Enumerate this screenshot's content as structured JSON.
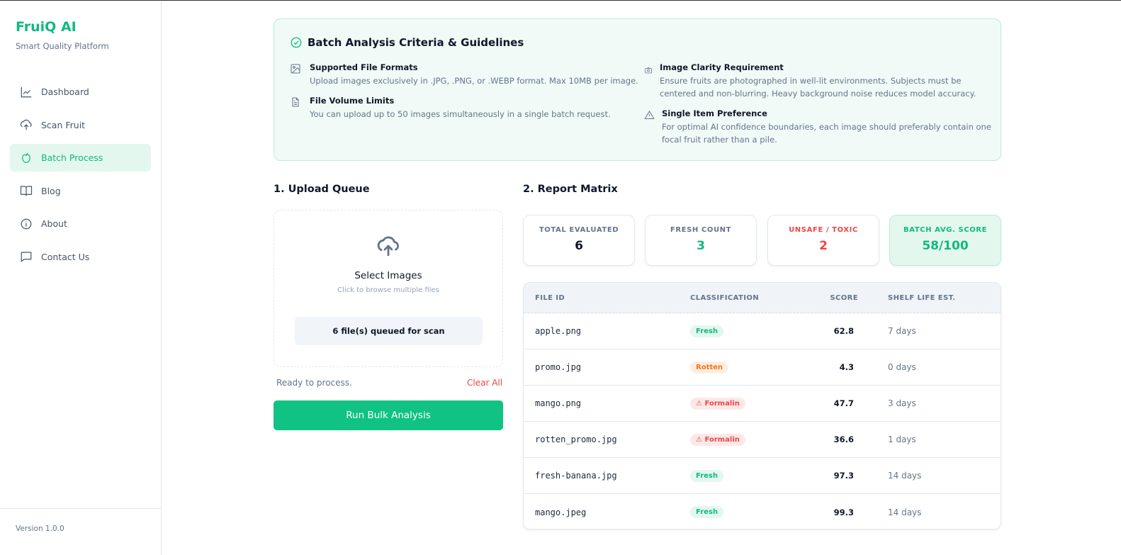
{
  "sidebar": {
    "brand": "FruiQ AI",
    "tagline": "Smart Quality Platform",
    "items": [
      {
        "label": "Dashboard",
        "icon": "chart-line-icon"
      },
      {
        "label": "Scan Fruit",
        "icon": "cloud-upload-icon"
      },
      {
        "label": "Batch Process",
        "icon": "apple-icon",
        "active": true
      },
      {
        "label": "Blog",
        "icon": "book-icon"
      },
      {
        "label": "About",
        "icon": "info-icon"
      },
      {
        "label": "Contact Us",
        "icon": "message-icon"
      }
    ],
    "version": "Version 1.0.0"
  },
  "guidelines": {
    "title": "Batch Analysis Criteria & Guidelines",
    "items": [
      {
        "title": "Supported File Formats",
        "text": "Upload images exclusively in .JPG, .PNG, or .WEBP format. Max 10MB per image.",
        "icon": "image-icon"
      },
      {
        "title": "File Volume Limits",
        "text": "You can upload up to 50 images simultaneously in a single batch request.",
        "icon": "file-text-icon"
      },
      {
        "title": "Image Clarity Requirement",
        "text": "Ensure fruits are photographed in well-lit environments. Subjects must be centered and non-blurring. Heavy background noise reduces model accuracy.",
        "icon": "camera-icon"
      },
      {
        "title": "Single Item Preference",
        "text": "For optimal AI confidence boundaries, each image should preferably contain one focal fruit rather than a pile.",
        "icon": "warning-icon"
      }
    ]
  },
  "upload": {
    "title": "1. Upload Queue",
    "select": "Select Images",
    "hint": "Click to browse multiple files",
    "queued": "6 file(s) queued for scan",
    "status": "Ready to process.",
    "clear": "Clear All",
    "run": "Run Bulk Analysis"
  },
  "report": {
    "title": "2. Report Matrix",
    "stats": [
      {
        "label": "TOTAL EVALUATED",
        "value": "6"
      },
      {
        "label": "FRESH COUNT",
        "value": "3"
      },
      {
        "label": "UNSAFE / TOXIC",
        "value": "2"
      },
      {
        "label": "BATCH AVG. SCORE",
        "value": "58/100"
      }
    ],
    "columns": [
      "FILE ID",
      "CLASSIFICATION",
      "SCORE",
      "SHELF LIFE EST."
    ],
    "rows": [
      {
        "file": "apple.png",
        "class": "Fresh",
        "score": "62.8",
        "shelf": "7 days"
      },
      {
        "file": "promo.jpg",
        "class": "Rotten",
        "score": "4.3",
        "shelf": "0 days"
      },
      {
        "file": "mango.png",
        "class": "Formalin",
        "score": "47.7",
        "shelf": "3 days"
      },
      {
        "file": "rotten_promo.jpg",
        "class": "Formalin",
        "score": "36.6",
        "shelf": "1 days"
      },
      {
        "file": "fresh-banana.jpg",
        "class": "Fresh",
        "score": "97.3",
        "shelf": "14 days"
      },
      {
        "file": "mango.jpeg",
        "class": "Fresh",
        "score": "99.3",
        "shelf": "14 days"
      }
    ]
  },
  "colors": {
    "accent": "#10b981",
    "danger": "#ef4444",
    "warning": "#f97316"
  }
}
